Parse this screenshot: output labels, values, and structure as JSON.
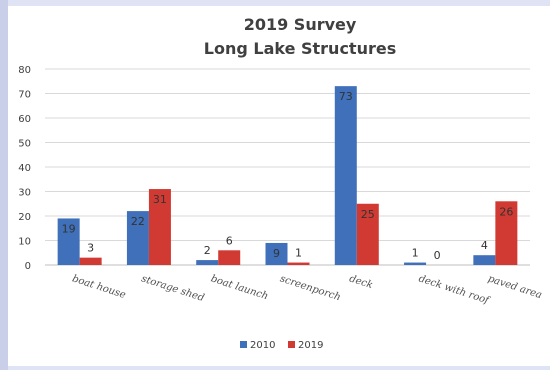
{
  "colors": {
    "s2010": "#3f70b9",
    "s2019": "#d13a32",
    "grid": "#d9d9d9"
  },
  "chart_data": {
    "type": "bar",
    "title_lines": [
      "2019 Survey",
      "Long Lake Structures"
    ],
    "categories": [
      "boat house",
      "storage shed",
      "boat launch",
      "screenporch",
      "deck",
      "deck with roof",
      "paved area"
    ],
    "series": [
      {
        "name": "2010",
        "values": [
          19,
          22,
          2,
          9,
          73,
          1,
          4
        ]
      },
      {
        "name": "2019",
        "values": [
          3,
          31,
          6,
          1,
          25,
          0,
          26
        ]
      }
    ],
    "yticks": [
      0,
      10,
      20,
      30,
      40,
      50,
      60,
      70,
      80
    ],
    "ylim": [
      0,
      80
    ],
    "grid": true,
    "legend_position": "bottom"
  }
}
